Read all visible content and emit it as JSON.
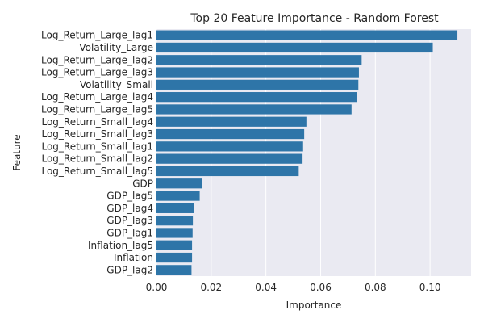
{
  "chart_data": {
    "type": "bar",
    "orientation": "horizontal",
    "title": "Top 20 Feature Importance - Random Forest",
    "xlabel": "Importance",
    "ylabel": "Feature",
    "xlim": [
      0,
      0.115
    ],
    "xticks": [
      "0.00",
      "0.02",
      "0.04",
      "0.06",
      "0.08",
      "0.10"
    ],
    "grid": true,
    "categories": [
      "Log_Return_Large_lag1",
      "Volatility_Large",
      "Log_Return_Large_lag2",
      "Log_Return_Large_lag3",
      "Volatility_Small",
      "Log_Return_Large_lag4",
      "Log_Return_Large_lag5",
      "Log_Return_Small_lag4",
      "Log_Return_Small_lag3",
      "Log_Return_Small_lag1",
      "Log_Return_Small_lag2",
      "Log_Return_Small_lag5",
      "GDP",
      "GDP_lag5",
      "GDP_lag4",
      "GDP_lag3",
      "GDP_lag1",
      "Inflation_lag5",
      "Inflation",
      "GDP_lag2"
    ],
    "values": [
      0.11,
      0.101,
      0.075,
      0.074,
      0.0738,
      0.0732,
      0.0713,
      0.0548,
      0.054,
      0.0536,
      0.0534,
      0.052,
      0.0168,
      0.0158,
      0.0136,
      0.0133,
      0.0132,
      0.013,
      0.013,
      0.0128
    ],
    "bar_color": "#2e75a8",
    "background_color": "#eaeaf2",
    "grid_color": "#ffffff"
  }
}
